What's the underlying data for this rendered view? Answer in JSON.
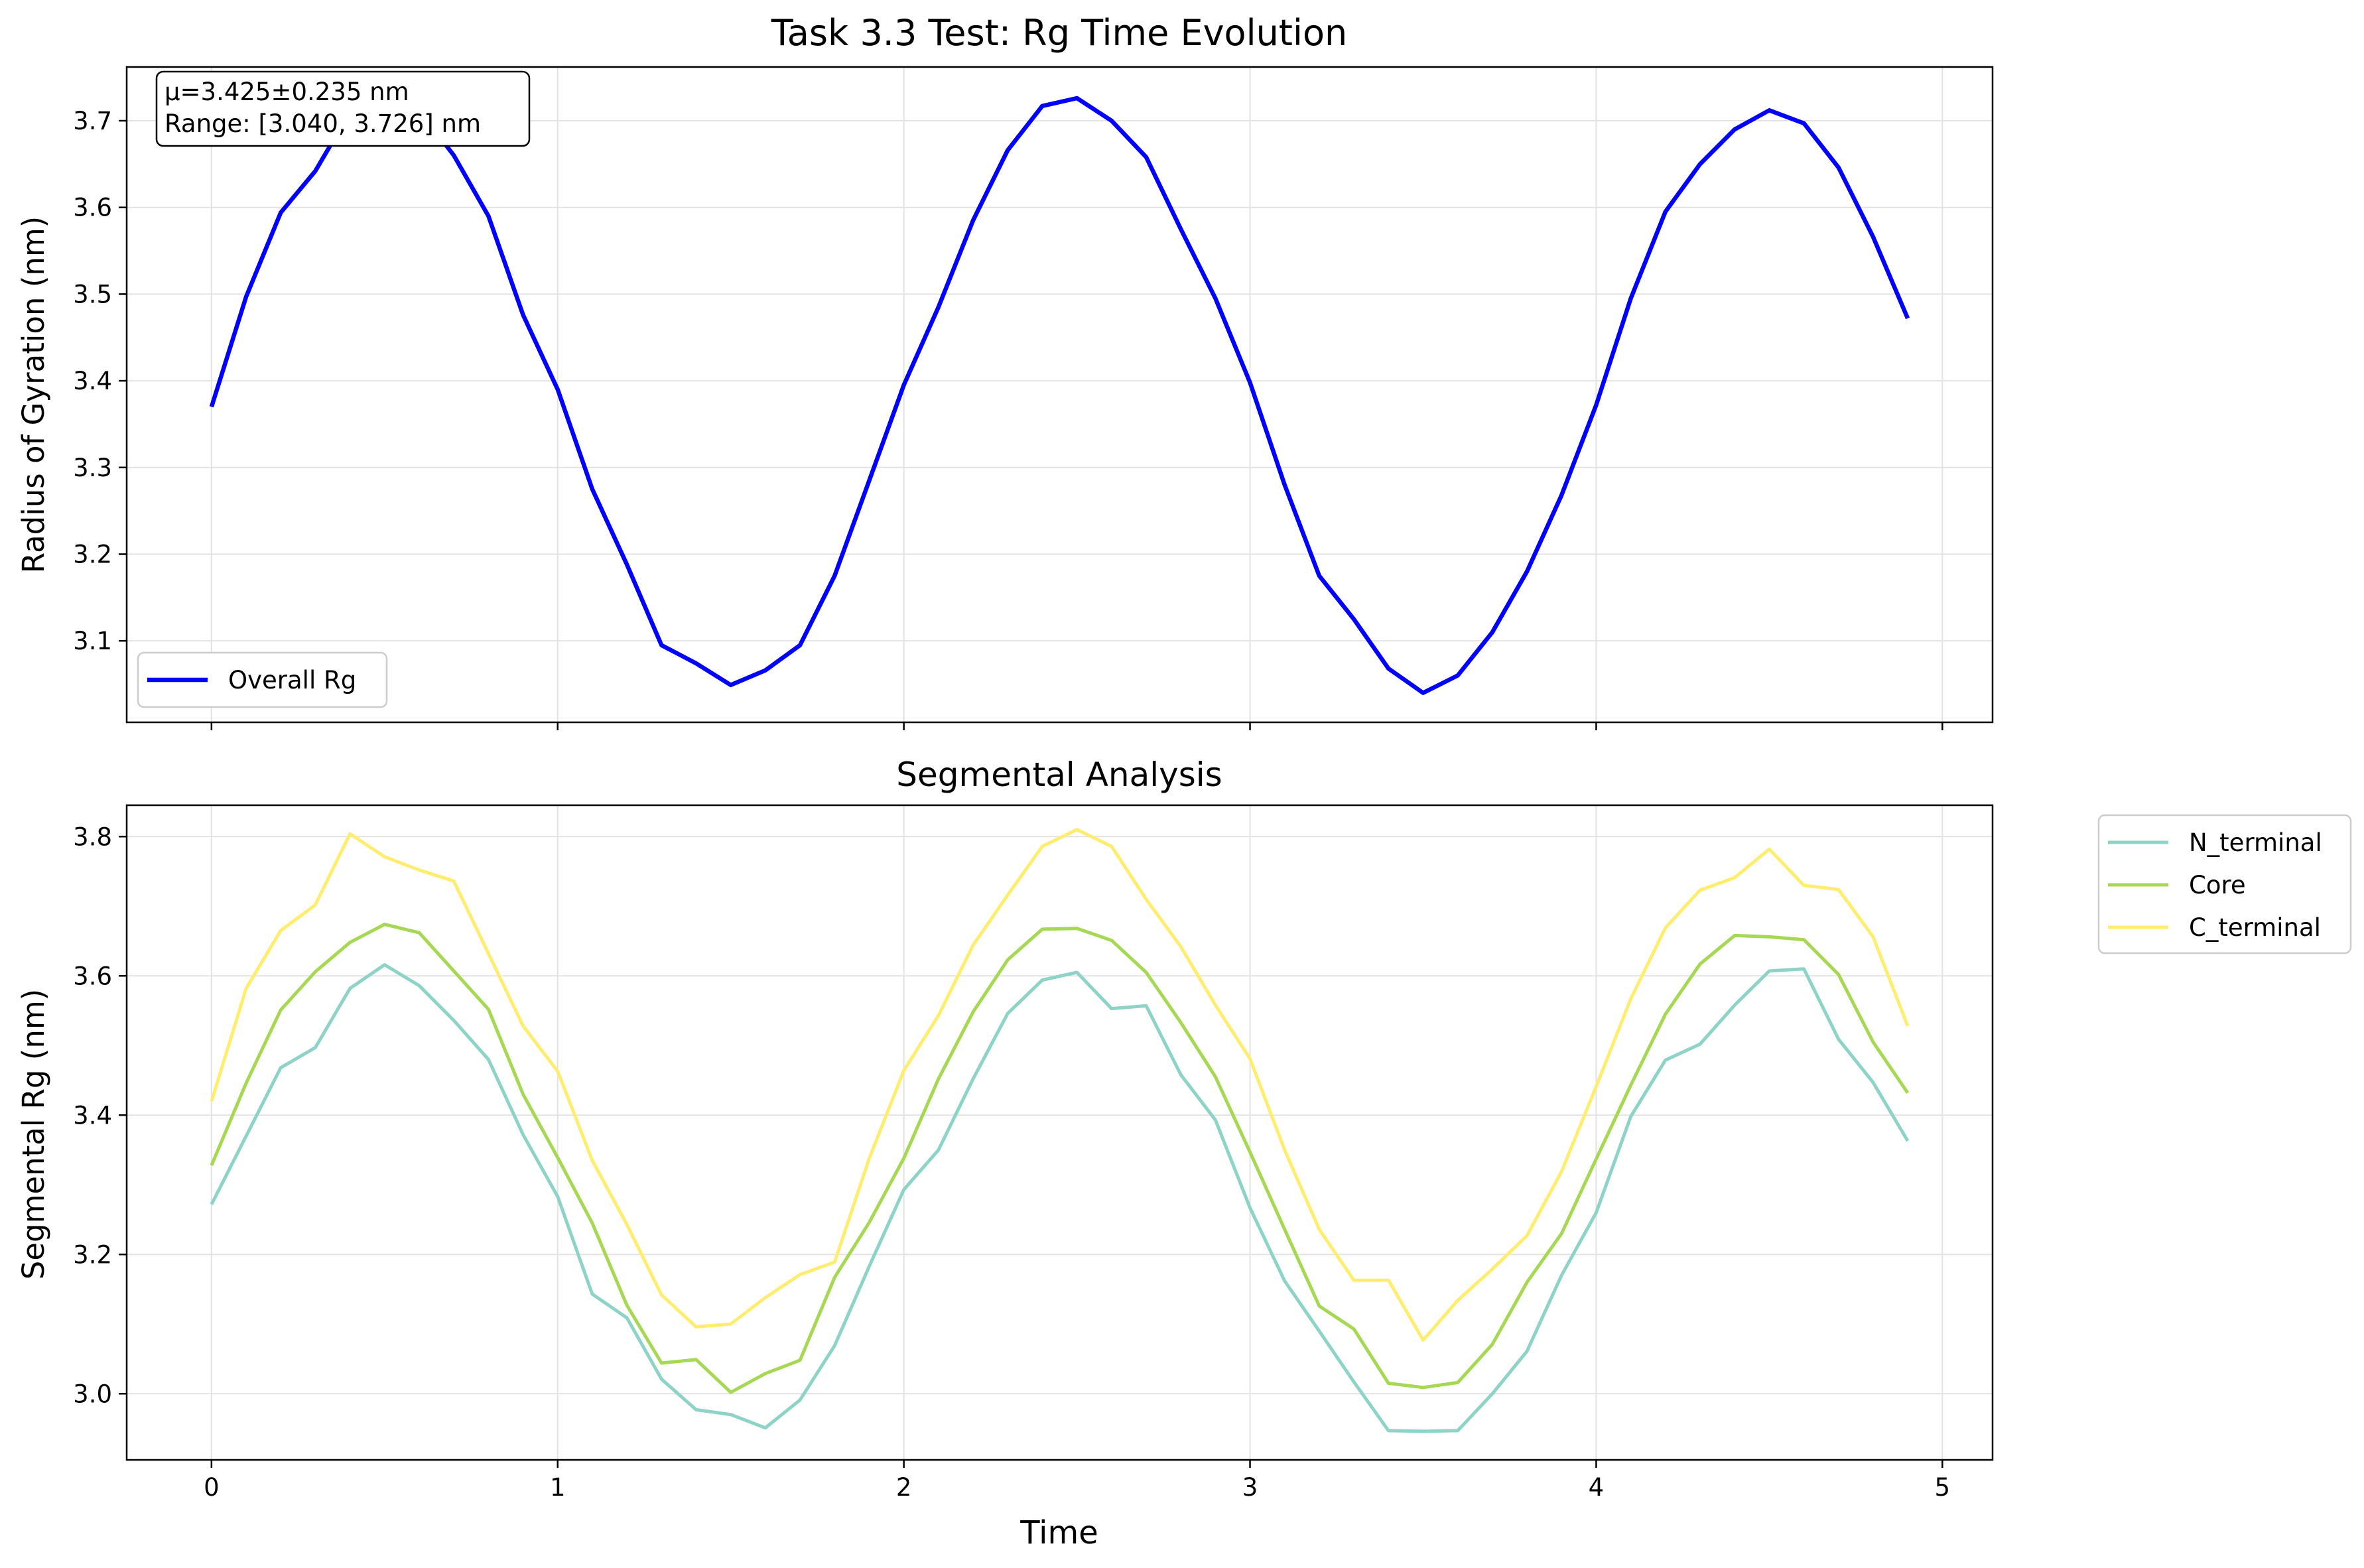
{
  "chart_data": [
    {
      "type": "line",
      "title": "Task 3.3 Test: Rg Time Evolution",
      "xlabel": "",
      "ylabel": "Radius of Gyration (nm)",
      "xlim": [
        -0.245,
        5.145
      ],
      "ylim": [
        3.006,
        3.762
      ],
      "xticks": [
        0,
        1,
        2,
        3,
        4,
        5
      ],
      "xticklabels": [
        "",
        "",
        "",
        "",
        "",
        ""
      ],
      "yticks": [
        3.1,
        3.2,
        3.3,
        3.4,
        3.5,
        3.6,
        3.7
      ],
      "yticklabels": [
        "3.1",
        "3.2",
        "3.3",
        "3.4",
        "3.5",
        "3.6",
        "3.7"
      ],
      "grid": true,
      "legend_position": "lower-left",
      "annotation_lines": [
        "μ=3.425±0.235 nm",
        "Range: [3.040, 3.726] nm"
      ],
      "x": [
        0.0,
        0.1,
        0.2,
        0.3,
        0.4,
        0.5,
        0.6,
        0.7,
        0.8,
        0.9,
        1.0,
        1.1,
        1.2,
        1.3,
        1.4,
        1.5,
        1.6,
        1.7,
        1.8,
        1.9,
        2.0,
        2.1,
        2.2,
        2.3,
        2.4,
        2.5,
        2.6,
        2.7,
        2.8,
        2.9,
        3.0,
        3.1,
        3.2,
        3.3,
        3.4,
        3.5,
        3.6,
        3.7,
        3.8,
        3.9,
        4.0,
        4.1,
        4.2,
        4.3,
        4.4,
        4.5,
        4.6,
        4.7,
        4.8,
        4.9
      ],
      "series": [
        {
          "name": "Overall Rg",
          "color": "#0000ff",
          "values": [
            3.37,
            3.497,
            3.594,
            3.642,
            3.71,
            3.725,
            3.712,
            3.66,
            3.59,
            3.476,
            3.39,
            3.275,
            3.188,
            3.095,
            3.074,
            3.049,
            3.066,
            3.095,
            3.175,
            3.285,
            3.395,
            3.485,
            3.585,
            3.666,
            3.717,
            3.726,
            3.7,
            3.658,
            3.575,
            3.495,
            3.398,
            3.28,
            3.175,
            3.125,
            3.068,
            3.04,
            3.06,
            3.11,
            3.18,
            3.268,
            3.372,
            3.495,
            3.595,
            3.65,
            3.69,
            3.712,
            3.697,
            3.646,
            3.566,
            3.472
          ]
        }
      ]
    },
    {
      "type": "line",
      "title": "Segmental Analysis",
      "xlabel": "Time",
      "ylabel": "Segmental Rg (nm)",
      "xlim": [
        -0.245,
        5.145
      ],
      "ylim": [
        2.905,
        3.845
      ],
      "xticks": [
        0,
        1,
        2,
        3,
        4,
        5
      ],
      "xticklabels": [
        "0",
        "1",
        "2",
        "3",
        "4",
        "5"
      ],
      "yticks": [
        3.0,
        3.2,
        3.4,
        3.6,
        3.8
      ],
      "yticklabels": [
        "3.0",
        "3.2",
        "3.4",
        "3.6",
        "3.8"
      ],
      "grid": true,
      "legend_position": "outside-upper-right",
      "x": [
        0.0,
        0.1,
        0.2,
        0.3,
        0.4,
        0.5,
        0.6,
        0.7,
        0.8,
        0.9,
        1.0,
        1.1,
        1.2,
        1.3,
        1.4,
        1.5,
        1.6,
        1.7,
        1.8,
        1.9,
        2.0,
        2.1,
        2.2,
        2.3,
        2.4,
        2.5,
        2.6,
        2.7,
        2.8,
        2.9,
        3.0,
        3.1,
        3.2,
        3.3,
        3.4,
        3.5,
        3.6,
        3.7,
        3.8,
        3.9,
        4.0,
        4.1,
        4.2,
        4.3,
        4.4,
        4.5,
        4.6,
        4.7,
        4.8,
        4.9
      ],
      "series": [
        {
          "name": "N_terminal",
          "color": "#8dd3c7",
          "values": [
            3.272,
            3.37,
            3.468,
            3.497,
            3.582,
            3.616,
            3.586,
            3.536,
            3.48,
            3.372,
            3.283,
            3.143,
            3.109,
            3.021,
            2.977,
            2.97,
            2.951,
            2.991,
            3.069,
            3.183,
            3.293,
            3.35,
            3.452,
            3.546,
            3.594,
            3.605,
            3.553,
            3.557,
            3.458,
            3.393,
            3.267,
            3.162,
            3.09,
            3.017,
            2.947,
            2.946,
            2.947,
            3.0,
            3.061,
            3.17,
            3.26,
            3.398,
            3.479,
            3.502,
            3.558,
            3.607,
            3.61,
            3.509,
            3.447,
            3.363
          ]
        },
        {
          "name": "Core",
          "color": "#a6d854",
          "values": [
            3.328,
            3.446,
            3.551,
            3.606,
            3.648,
            3.674,
            3.662,
            3.607,
            3.552,
            3.43,
            3.339,
            3.245,
            3.127,
            3.044,
            3.049,
            3.002,
            3.029,
            3.048,
            3.167,
            3.246,
            3.338,
            3.452,
            3.548,
            3.623,
            3.667,
            3.668,
            3.651,
            3.605,
            3.533,
            3.455,
            3.347,
            3.236,
            3.126,
            3.093,
            3.015,
            3.009,
            3.016,
            3.071,
            3.16,
            3.23,
            3.337,
            3.443,
            3.545,
            3.617,
            3.658,
            3.656,
            3.652,
            3.602,
            3.505,
            3.432
          ]
        },
        {
          "name": "C_terminal",
          "color": "#ffed6f",
          "values": [
            3.42,
            3.582,
            3.665,
            3.702,
            3.804,
            3.771,
            3.752,
            3.736,
            3.632,
            3.528,
            3.463,
            3.335,
            3.243,
            3.142,
            3.096,
            3.1,
            3.138,
            3.171,
            3.189,
            3.338,
            3.464,
            3.543,
            3.644,
            3.716,
            3.786,
            3.81,
            3.786,
            3.71,
            3.642,
            3.558,
            3.481,
            3.35,
            3.236,
            3.163,
            3.163,
            3.077,
            3.134,
            3.179,
            3.227,
            3.319,
            3.441,
            3.567,
            3.669,
            3.723,
            3.741,
            3.782,
            3.73,
            3.724,
            3.656,
            3.528
          ]
        }
      ]
    }
  ]
}
